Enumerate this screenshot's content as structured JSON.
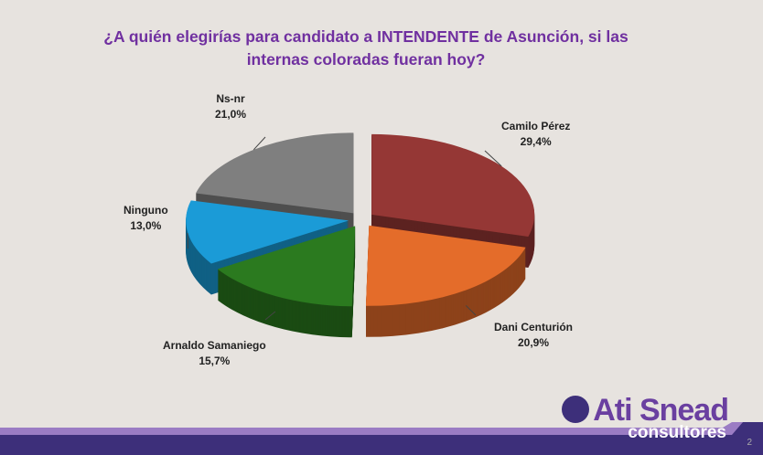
{
  "chart_data": {
    "type": "pie",
    "title": "¿A quién elegirías para candidato a INTENDENTE de Asunción, si las internas coloradas fueran hoy?",
    "categories": [
      "Camilo Pérez",
      "Dani Centurión",
      "Arnaldo Samaniego",
      "Ninguno",
      "Ns-nr"
    ],
    "values": [
      29.4,
      20.9,
      15.7,
      13.0,
      21.0
    ],
    "value_labels": [
      "29,4%",
      "20,9%",
      "15,7%",
      "13,0%",
      "21,0%"
    ],
    "colors": [
      "#953735",
      "#e46c2a",
      "#2b7a1f",
      "#1b9bd7",
      "#7f7f7f"
    ]
  },
  "brand": {
    "name": "Ati Snead",
    "sub": "consultores",
    "page": "2"
  }
}
